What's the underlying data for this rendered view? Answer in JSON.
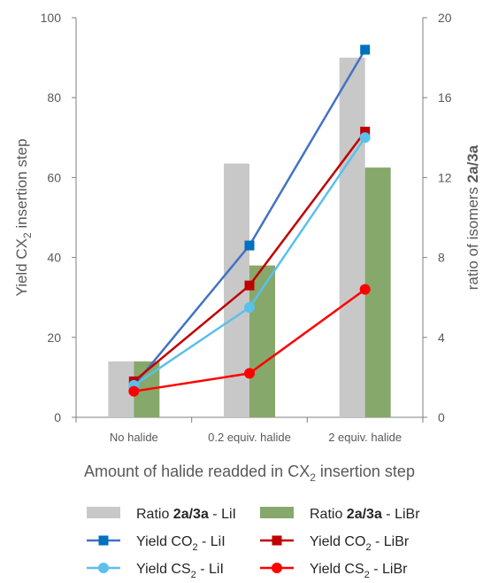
{
  "chart_data": {
    "type": "bar",
    "categories": [
      "No halide",
      "0.2 equiv. halide",
      "2 equiv. halide"
    ],
    "xlabel": "Amount of halide readded in CX₂ insertion step",
    "ylabel_left": "Yield CX₂ insertion step",
    "ylabel_right": "ratio of isomers 2a/3a",
    "ylim_left": [
      0,
      100
    ],
    "yticks_left": [
      "0",
      "20",
      "40",
      "60",
      "80",
      "100"
    ],
    "ylim_right": [
      0,
      20
    ],
    "yticks_right": [
      "0",
      "4",
      "8",
      "12",
      "16",
      "20"
    ],
    "grid": false,
    "legend_position": "bottom",
    "bar_series": [
      {
        "name": "Ratio 2a/3a - LiI",
        "axis": "right",
        "color": "#c8c8c8",
        "values": [
          2.8,
          12.7,
          18.0
        ]
      },
      {
        "name": "Ratio 2a/3a - LiBr",
        "axis": "right",
        "color": "#86a86a",
        "values": [
          2.8,
          7.6,
          12.5
        ]
      }
    ],
    "line_series": [
      {
        "name": "Yield CO₂ - LiI",
        "axis": "left",
        "color": "#4472c4",
        "marker_color": "#0070c0",
        "marker": "square",
        "values": [
          8,
          43,
          92
        ]
      },
      {
        "name": "Yield CO₂ - LiBr",
        "axis": "left",
        "color": "#c00000",
        "marker_color": "#c00000",
        "marker": "square",
        "values": [
          9,
          33,
          71.5
        ]
      },
      {
        "name": "Yield CS₂ - LiI",
        "axis": "left",
        "color": "#5bc0eb",
        "marker_color": "#5bc0eb",
        "marker": "circle",
        "values": [
          8,
          27.5,
          70
        ]
      },
      {
        "name": "Yield CS₂ - LiBr",
        "axis": "left",
        "color": "#ff0000",
        "marker_color": "#ff0000",
        "marker": "circle",
        "values": [
          6.5,
          11,
          32
        ]
      }
    ]
  }
}
